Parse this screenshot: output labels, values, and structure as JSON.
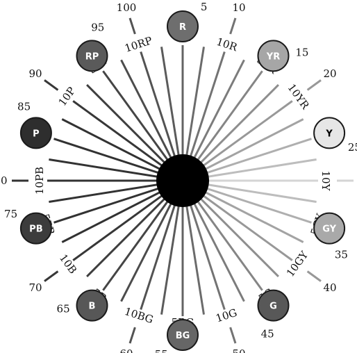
{
  "diagram": {
    "numbers": [
      "5",
      "10",
      "15",
      "20",
      "25",
      "30",
      "35",
      "40",
      "45",
      "50",
      "55",
      "60",
      "65",
      "70",
      "75",
      "80",
      "85",
      "90",
      "95",
      "100"
    ],
    "hue_labels": [
      "5R",
      "10R",
      "5YR",
      "10YR",
      "5Y",
      "10Y",
      "5GY",
      "10GY",
      "5G",
      "10G",
      "5BG",
      "10BG",
      "5B",
      "10B",
      "5PB",
      "10PB",
      "5P",
      "10P",
      "5RP",
      "10RP"
    ],
    "principal_hues": [
      {
        "label": "R",
        "number": "5",
        "fill": "#6e6e6e",
        "text_color": "#ffffff"
      },
      {
        "label": "YR",
        "number": "15",
        "fill": "#a6a6a6",
        "text_color": "#ffffff"
      },
      {
        "label": "Y",
        "number": "25",
        "fill": "#e6e6e6",
        "text_color": "#000000"
      },
      {
        "label": "GY",
        "number": "35",
        "fill": "#a9a9a9",
        "text_color": "#ffffff"
      },
      {
        "label": "G",
        "number": "45",
        "fill": "#585858",
        "text_color": "#ffffff"
      },
      {
        "label": "BG",
        "number": "55",
        "fill": "#666666",
        "text_color": "#ffffff"
      },
      {
        "label": "B",
        "number": "65",
        "fill": "#575757",
        "text_color": "#ffffff"
      },
      {
        "label": "PB",
        "number": "75",
        "fill": "#3c3c3c",
        "text_color": "#ffffff"
      },
      {
        "label": "P",
        "number": "85",
        "fill": "#2e2e2e",
        "text_color": "#ffffff"
      },
      {
        "label": "RP",
        "number": "95",
        "fill": "#5a5a5a",
        "text_color": "#ffffff"
      }
    ],
    "colors": {
      "hub": "#000000",
      "line_dark": "#333333",
      "line_light": "#d4d4d4",
      "disc_stroke": "#1a1a1a",
      "text": "#111111"
    }
  }
}
